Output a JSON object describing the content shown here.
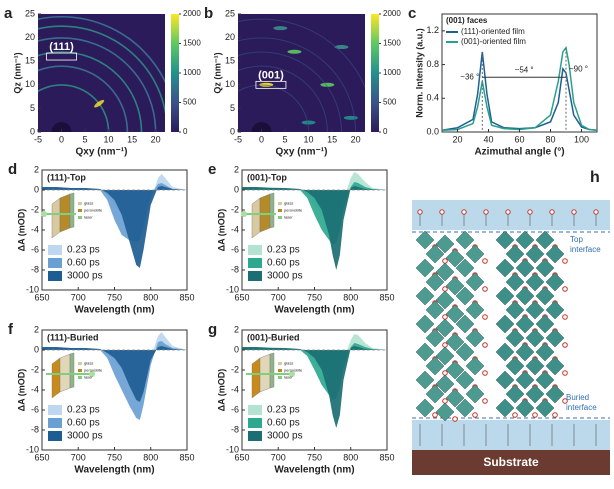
{
  "chart_data": [
    {
      "type": "heatmap",
      "panel_label": "a",
      "xlabel": "Qxy (nm⁻¹)",
      "ylabel": "Qz (nm⁻¹)",
      "xlim": [
        -5,
        22
      ],
      "xticks": [
        -5,
        0,
        5,
        10,
        15,
        20
      ],
      "ylim": [
        0,
        25
      ],
      "yticks": [
        0,
        5,
        10,
        15,
        20,
        25
      ],
      "clim": [
        0,
        2000
      ],
      "cticks": [
        0,
        500,
        1000,
        1500,
        2000
      ],
      "annotation": "(111)"
    },
    {
      "type": "heatmap",
      "panel_label": "b",
      "xlabel": "Qxy (nm⁻¹)",
      "ylabel": "Qz (nm⁻¹)",
      "xlim": [
        -5,
        22
      ],
      "xticks": [
        -5,
        0,
        5,
        10,
        15,
        20
      ],
      "ylim": [
        0,
        25
      ],
      "yticks": [
        0,
        5,
        10,
        15,
        20,
        25
      ],
      "clim": [
        0,
        2000
      ],
      "cticks": [
        0,
        500,
        1000,
        1500,
        2000
      ],
      "annotation": "(001)"
    },
    {
      "type": "line",
      "panel_label": "c",
      "legend_title": "(001) faces",
      "xlabel": "Azimuthal angle (°)",
      "ylabel": "Norm. Intensity (a.u.)",
      "x": [
        10,
        20,
        30,
        33,
        36,
        39,
        42,
        50,
        60,
        70,
        80,
        85,
        88,
        90,
        92,
        95,
        100,
        105,
        110
      ],
      "series": [
        {
          "name": "(111)-oriented film",
          "color": "#1f5f94",
          "values": [
            0.02,
            0.05,
            0.15,
            0.45,
            0.95,
            0.45,
            0.12,
            0.05,
            0.04,
            0.05,
            0.12,
            0.35,
            0.75,
            0.7,
            0.5,
            0.2,
            0.06,
            0.03,
            0.02
          ]
        },
        {
          "name": "(001)-oriented film",
          "color": "#2aa08c",
          "values": [
            0.02,
            0.03,
            0.1,
            0.3,
            0.6,
            0.3,
            0.08,
            0.04,
            0.03,
            0.05,
            0.2,
            0.6,
            0.95,
            1.0,
            0.8,
            0.35,
            0.08,
            0.03,
            0.02
          ]
        }
      ],
      "xlim": [
        10,
        110
      ],
      "xticks": [
        20,
        40,
        60,
        80,
        100
      ],
      "ylim": [
        0,
        1.4
      ],
      "yticks": [
        {
          "value": 0,
          "label": "0.0"
        },
        0.4,
        0.8,
        1.2
      ],
      "annotations": [
        "~36 °",
        "~54 °",
        "~90 °"
      ]
    },
    {
      "type": "area",
      "panel_label": "d",
      "title": "(111)-Top",
      "xlabel": "Wavelength (nm)",
      "ylabel": "ΔA (mOD)",
      "inset_labels": [
        "glass",
        "perovskite",
        "laser"
      ],
      "x": [
        650,
        670,
        690,
        710,
        730,
        740,
        750,
        760,
        770,
        780,
        785,
        790,
        800,
        810,
        815,
        820,
        830,
        850
      ],
      "series": [
        {
          "name": "0.23 ps",
          "color": "#bcd7ee",
          "values": [
            0.3,
            0.3,
            0.2,
            0.2,
            0.1,
            -0.5,
            -1.5,
            -2.5,
            -3.5,
            -4.5,
            -4.8,
            -4,
            -1,
            1.2,
            1.6,
            1.2,
            0.3,
            0
          ]
        },
        {
          "name": "0.60 ps",
          "color": "#6a9fd2",
          "values": [
            0.2,
            0.2,
            0.2,
            0.1,
            0,
            -1,
            -3,
            -4.5,
            -5,
            -5.2,
            -5,
            -3.5,
            -0.5,
            0.6,
            0.7,
            0.5,
            0.1,
            0
          ]
        },
        {
          "name": "3000 ps",
          "color": "#1e5d92",
          "values": [
            0.3,
            0.3,
            0.2,
            0.2,
            0.1,
            -0.3,
            -1,
            -2.5,
            -5,
            -7.5,
            -7.8,
            -6,
            -1.5,
            0.3,
            0.4,
            0.3,
            0.1,
            0
          ]
        }
      ],
      "xlim": [
        650,
        850
      ],
      "xticks": [
        650,
        700,
        750,
        800,
        850
      ],
      "ylim": [
        -10,
        2
      ],
      "yticks": [
        2,
        0,
        -2,
        -4,
        -6,
        -8,
        -10
      ]
    },
    {
      "type": "area",
      "panel_label": "e",
      "title": "(001)-Top",
      "xlabel": "Wavelength (nm)",
      "ylabel": "ΔA (mOD)",
      "inset_labels": [
        "glass",
        "perovskite",
        "laser"
      ],
      "x": [
        650,
        670,
        690,
        710,
        730,
        740,
        750,
        760,
        770,
        775,
        780,
        785,
        790,
        800,
        805,
        810,
        820,
        830,
        850
      ],
      "series": [
        {
          "name": "0.23 ps",
          "color": "#b3e2d3",
          "values": [
            0.3,
            0.3,
            0.3,
            0.2,
            0.1,
            -0.5,
            -1.5,
            -2.5,
            -3,
            -3.3,
            -3.2,
            -2.5,
            -1,
            1.2,
            1.8,
            1.6,
            0.8,
            0.2,
            0
          ]
        },
        {
          "name": "0.60 ps",
          "color": "#2ea88f",
          "values": [
            0.2,
            0.2,
            0.2,
            0.1,
            0,
            -0.8,
            -2.5,
            -4,
            -5,
            -5.5,
            -5.3,
            -4,
            -2,
            0.3,
            0.8,
            0.7,
            0.3,
            0.1,
            0
          ]
        },
        {
          "name": "3000 ps",
          "color": "#1b6f73",
          "values": [
            0.3,
            0.3,
            0.2,
            0.2,
            0.1,
            -0.2,
            -0.8,
            -2,
            -4.5,
            -6.5,
            -8,
            -6.5,
            -3,
            0.2,
            0.4,
            0.3,
            0.1,
            0.05,
            0
          ]
        }
      ],
      "xlim": [
        650,
        850
      ],
      "xticks": [
        650,
        700,
        750,
        800,
        850
      ],
      "ylim": [
        -10,
        2
      ],
      "yticks": [
        2,
        0,
        -2,
        -4,
        -6,
        -8,
        -10
      ]
    },
    {
      "type": "area",
      "panel_label": "f",
      "title": "(111)-Buried",
      "xlabel": "Wavelength (nm)",
      "ylabel": "ΔA (mOD)",
      "inset_labels": [
        "glass",
        "perovskite",
        "laser"
      ],
      "x": [
        650,
        670,
        690,
        710,
        730,
        740,
        750,
        760,
        770,
        780,
        785,
        790,
        800,
        810,
        815,
        820,
        830,
        850
      ],
      "series": [
        {
          "name": "0.23 ps",
          "color": "#bcd7ee",
          "values": [
            0.3,
            0.3,
            0.2,
            0.2,
            0.1,
            -0.3,
            -1,
            -2,
            -3,
            -3.5,
            -3.6,
            -3,
            -0.8,
            1.4,
            1.8,
            1.3,
            0.4,
            0
          ]
        },
        {
          "name": "0.60 ps",
          "color": "#6a9fd2",
          "values": [
            0.2,
            0.2,
            0.2,
            0.1,
            0,
            -0.8,
            -2.5,
            -4,
            -5.5,
            -6.8,
            -7,
            -5.5,
            -1.5,
            0.8,
            0.9,
            0.6,
            0.2,
            0
          ]
        },
        {
          "name": "3000 ps",
          "color": "#1e5d92",
          "values": [
            0.3,
            0.3,
            0.2,
            0.2,
            0.1,
            -0.3,
            -0.8,
            -1.8,
            -3.5,
            -5,
            -5.2,
            -4.2,
            -1,
            0.3,
            0.4,
            0.3,
            0.1,
            0
          ]
        }
      ],
      "xlim": [
        650,
        850
      ],
      "xticks": [
        650,
        700,
        750,
        800,
        850
      ],
      "ylim": [
        -10,
        2
      ],
      "yticks": [
        2,
        0,
        -2,
        -4,
        -6,
        -8,
        -10
      ]
    },
    {
      "type": "area",
      "panel_label": "g",
      "title": "(001)-Buried",
      "xlabel": "Wavelength (nm)",
      "ylabel": "ΔA (mOD)",
      "inset_labels": [
        "glass",
        "perovskite",
        "laser"
      ],
      "x": [
        650,
        670,
        690,
        710,
        730,
        740,
        750,
        760,
        770,
        775,
        780,
        785,
        790,
        800,
        805,
        810,
        820,
        830,
        850
      ],
      "series": [
        {
          "name": "0.23 ps",
          "color": "#b3e2d3",
          "values": [
            0.3,
            0.3,
            0.3,
            0.2,
            0.1,
            -0.4,
            -1.2,
            -2,
            -2.8,
            -3,
            -3,
            -2.4,
            -1,
            1,
            1.6,
            1.5,
            0.7,
            0.2,
            0
          ]
        },
        {
          "name": "0.60 ps",
          "color": "#2ea88f",
          "values": [
            0.2,
            0.2,
            0.2,
            0.1,
            0,
            -0.6,
            -2,
            -3.5,
            -4.5,
            -5,
            -4.8,
            -3.8,
            -1.8,
            0.3,
            0.7,
            0.6,
            0.3,
            0.1,
            0
          ]
        },
        {
          "name": "3000 ps",
          "color": "#1b6f73",
          "values": [
            0.3,
            0.3,
            0.2,
            0.2,
            0.1,
            -0.2,
            -0.8,
            -2,
            -4.5,
            -6.5,
            -7.8,
            -6.5,
            -3,
            0.2,
            0.4,
            0.3,
            0.1,
            0.05,
            0
          ]
        }
      ],
      "xlim": [
        650,
        850
      ],
      "xticks": [
        650,
        700,
        750,
        800,
        850
      ],
      "ylim": [
        -10,
        2
      ],
      "yticks": [
        2,
        0,
        -2,
        -4,
        -6,
        -8,
        -10
      ]
    }
  ],
  "panel_h": {
    "panel_label": "h",
    "top_label": [
      "Top",
      "interface"
    ],
    "buried_label": [
      "Buried",
      "interface"
    ],
    "substrate": "Substrate"
  }
}
